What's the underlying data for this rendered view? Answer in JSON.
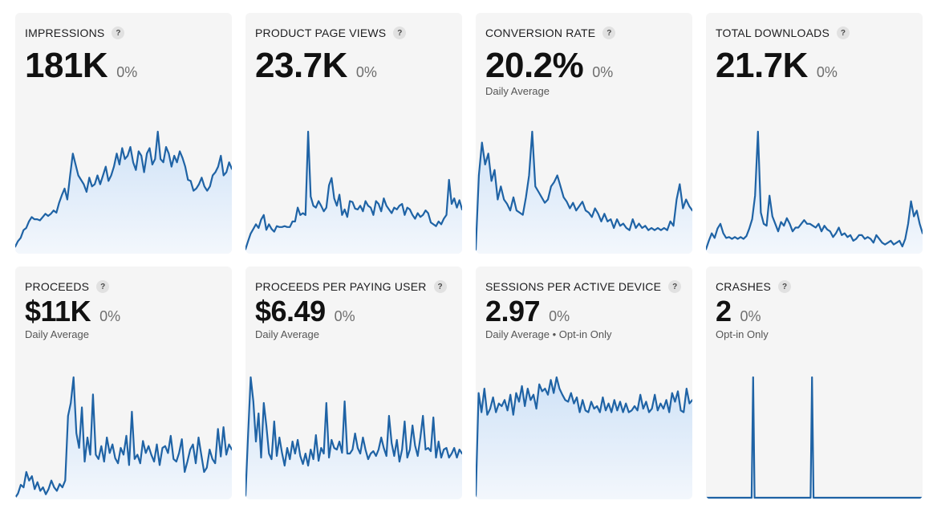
{
  "colors": {
    "line": "#1f63a5",
    "fill_top": "#cfe2f7",
    "fill_bottom": "#f3f7fc",
    "card_bg": "#f5f5f5"
  },
  "cards": [
    {
      "id": "impressions",
      "title": "IMPRESSIONS",
      "value": "181K",
      "delta": "0%",
      "subtitle": "",
      "help_icon": "question-mark-icon",
      "values": [
        5,
        10,
        13,
        20,
        22,
        28,
        32,
        30,
        30,
        29,
        32,
        35,
        33,
        35,
        38,
        36,
        45,
        52,
        58,
        48,
        70,
        90,
        80,
        70,
        66,
        62,
        55,
        68,
        60,
        62,
        70,
        62,
        70,
        78,
        65,
        70,
        78,
        90,
        80,
        95,
        85,
        88,
        96,
        82,
        75,
        92,
        88,
        73,
        90,
        95,
        80,
        85,
        110,
        85,
        82,
        96,
        90,
        78,
        88,
        82,
        92,
        86,
        78,
        66,
        65,
        56,
        58,
        62,
        68,
        60,
        56,
        60,
        70,
        73,
        78,
        88,
        70,
        73,
        82,
        76
      ]
    },
    {
      "id": "product-page-views",
      "title": "PRODUCT PAGE VIEWS",
      "value": "23.7K",
      "delta": "0%",
      "subtitle": "",
      "help_icon": "question-mark-icon",
      "values": [
        3,
        12,
        20,
        25,
        30,
        26,
        35,
        40,
        24,
        30,
        25,
        22,
        28,
        27,
        27,
        28,
        27,
        27,
        33,
        33,
        48,
        40,
        42,
        40,
        130,
        60,
        50,
        48,
        55,
        50,
        44,
        48,
        72,
        80,
        58,
        50,
        62,
        40,
        46,
        38,
        55,
        54,
        47,
        46,
        50,
        44,
        55,
        50,
        48,
        40,
        55,
        52,
        44,
        58,
        50,
        46,
        42,
        48,
        46,
        50,
        52,
        40,
        48,
        46,
        40,
        36,
        42,
        38,
        40,
        45,
        42,
        32,
        30,
        28,
        33,
        30,
        36,
        40,
        78,
        52,
        58,
        48,
        56,
        46
      ]
    },
    {
      "id": "conversion-rate",
      "title": "CONVERSION RATE",
      "value": "20.2%",
      "delta": "0%",
      "subtitle": "Daily Average",
      "help_icon": "question-mark-icon",
      "values": [
        2,
        70,
        100,
        80,
        90,
        65,
        75,
        48,
        60,
        48,
        44,
        38,
        50,
        38,
        36,
        34,
        50,
        70,
        110,
        60,
        55,
        50,
        45,
        48,
        60,
        64,
        70,
        60,
        50,
        46,
        40,
        45,
        38,
        42,
        46,
        38,
        36,
        32,
        40,
        35,
        28,
        35,
        28,
        30,
        22,
        30,
        24,
        26,
        22,
        20,
        30,
        22,
        26,
        22,
        24,
        20,
        22,
        20,
        22,
        20,
        22,
        20,
        28,
        24,
        48,
        62,
        40,
        48,
        42,
        38
      ]
    },
    {
      "id": "total-downloads",
      "title": "TOTAL DOWNLOADS",
      "value": "21.7K",
      "delta": "0%",
      "subtitle": "",
      "help_icon": "question-mark-icon",
      "values": [
        3,
        12,
        20,
        15,
        25,
        30,
        20,
        15,
        16,
        14,
        16,
        14,
        16,
        14,
        17,
        25,
        35,
        60,
        128,
        42,
        30,
        28,
        60,
        38,
        30,
        22,
        32,
        28,
        36,
        30,
        22,
        26,
        26,
        30,
        34,
        30,
        30,
        28,
        26,
        30,
        22,
        28,
        24,
        22,
        16,
        20,
        26,
        18,
        20,
        16,
        18,
        12,
        14,
        18,
        18,
        14,
        16,
        14,
        10,
        18,
        14,
        10,
        8,
        10,
        12,
        8,
        10,
        12,
        6,
        14,
        30,
        54,
        38,
        44,
        30,
        20
      ]
    },
    {
      "id": "proceeds",
      "title": "PROCEEDS",
      "value": "$11K",
      "delta": "0%",
      "subtitle": "Daily Average",
      "help_icon": "question-mark-icon",
      "values": [
        0,
        5,
        15,
        12,
        30,
        20,
        25,
        10,
        18,
        8,
        12,
        4,
        10,
        20,
        12,
        8,
        16,
        12,
        20,
        95,
        110,
        140,
        75,
        58,
        105,
        42,
        70,
        50,
        120,
        50,
        45,
        60,
        42,
        70,
        52,
        62,
        46,
        40,
        58,
        50,
        72,
        38,
        100,
        45,
        50,
        40,
        66,
        52,
        60,
        50,
        42,
        62,
        38,
        58,
        60,
        52,
        72,
        45,
        42,
        52,
        68,
        30,
        42,
        56,
        62,
        40,
        70,
        50,
        30,
        35,
        56,
        45,
        40,
        80,
        48,
        82,
        50,
        62,
        56
      ]
    },
    {
      "id": "proceeds-per-paying-user",
      "title": "PROCEEDS PER PAYING USER",
      "value": "$6.49",
      "delta": "0%",
      "subtitle": "Daily Average",
      "help_icon": "question-mark-icon",
      "values": [
        2,
        80,
        150,
        120,
        70,
        105,
        50,
        118,
        90,
        55,
        48,
        95,
        52,
        75,
        56,
        40,
        62,
        48,
        70,
        55,
        72,
        52,
        42,
        55,
        40,
        60,
        48,
        78,
        46,
        62,
        55,
        118,
        50,
        72,
        62,
        60,
        70,
        56,
        120,
        55,
        55,
        60,
        80,
        62,
        55,
        75,
        60,
        48,
        55,
        58,
        52,
        60,
        75,
        62,
        52,
        102,
        68,
        52,
        72,
        45,
        60,
        95,
        50,
        60,
        90,
        65,
        52,
        75,
        102,
        60,
        62,
        58,
        100,
        50,
        70,
        50,
        60,
        62,
        50,
        55,
        62,
        50,
        60,
        55
      ]
    },
    {
      "id": "sessions-per-active-device",
      "title": "SESSIONS PER ACTIVE DEVICE",
      "value": "2.97",
      "delta": "0%",
      "subtitle": "Daily Average • Opt-in Only",
      "help_icon": "question-mark-icon",
      "values": [
        0,
        120,
        98,
        125,
        95,
        102,
        115,
        98,
        108,
        105,
        112,
        100,
        118,
        95,
        120,
        110,
        128,
        105,
        125,
        112,
        118,
        102,
        130,
        122,
        125,
        118,
        135,
        120,
        138,
        125,
        118,
        112,
        110,
        120,
        108,
        115,
        98,
        112,
        100,
        98,
        110,
        102,
        105,
        98,
        115,
        100,
        108,
        98,
        112,
        100,
        110,
        98,
        108,
        98,
        100,
        105,
        100,
        118,
        102,
        110,
        98,
        102,
        118,
        100,
        108,
        102,
        112,
        98,
        120,
        110,
        122,
        100,
        98,
        125,
        108,
        112
      ]
    },
    {
      "id": "crashes",
      "title": "CRASHES",
      "value": "2",
      "delta": "0%",
      "subtitle": "Opt-in Only",
      "help_icon": "question-mark-icon",
      "values": [
        0,
        0,
        0,
        0,
        0,
        0,
        0,
        0,
        0,
        0,
        0,
        0,
        0,
        0,
        0,
        0,
        0,
        0,
        0,
        0,
        0,
        0,
        0,
        0,
        0,
        0,
        0,
        0,
        0,
        0,
        0,
        0,
        150,
        0,
        0,
        0,
        0,
        0,
        0,
        0,
        0,
        0,
        0,
        0,
        0,
        0,
        0,
        0,
        0,
        0,
        0,
        0,
        0,
        0,
        0,
        0,
        0,
        0,
        0,
        0,
        0,
        0,
        0,
        0,
        0,
        0,
        0,
        0,
        0,
        0,
        0,
        0,
        150,
        0,
        0,
        0,
        0,
        0,
        0,
        0,
        0,
        0,
        0,
        0,
        0,
        0,
        0,
        0,
        0,
        0,
        0,
        0,
        0,
        0,
        0,
        0,
        0,
        0,
        0,
        0,
        0,
        0,
        0,
        0,
        0,
        0,
        0,
        0,
        0,
        0,
        0,
        0,
        0,
        0,
        0,
        0,
        0,
        0,
        0,
        0,
        0,
        0,
        0,
        0,
        0,
        0,
        0,
        0,
        0,
        0,
        0,
        0,
        0,
        0,
        0,
        0,
        0,
        0,
        0,
        0,
        0,
        0,
        0,
        0,
        0,
        0,
        0,
        0
      ]
    }
  ]
}
